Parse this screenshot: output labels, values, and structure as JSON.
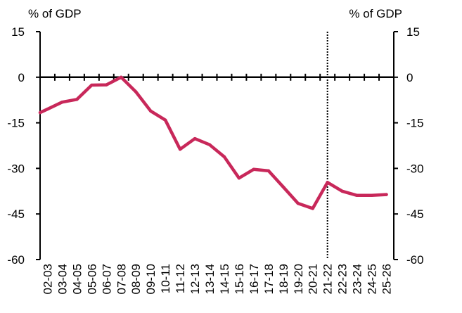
{
  "chart_data": {
    "type": "line",
    "title": "",
    "ylabel_left": "% of GDP",
    "ylabel_right": "% of GDP",
    "xlabel": "",
    "ylim": [
      -60,
      15
    ],
    "yticks": [
      15,
      0,
      -15,
      -30,
      -45,
      -60
    ],
    "grid": false,
    "legend": "none",
    "categories": [
      "02-03",
      "03-04",
      "04-05",
      "05-06",
      "06-07",
      "07-08",
      "08-09",
      "09-10",
      "10-11",
      "11-12",
      "12-13",
      "13-14",
      "14-15",
      "15-16",
      "16-17",
      "17-18",
      "18-19",
      "19-20",
      "20-21",
      "21-22",
      "22-23",
      "23-24",
      "24-25",
      "25-26"
    ],
    "series": [
      {
        "color": "#c8285a",
        "values": [
          -10.5,
          -8.2,
          -7.3,
          -2.6,
          -2.5,
          0,
          -4.8,
          -11.1,
          -14.1,
          -23.7,
          -20.2,
          -22.2,
          -26.2,
          -33.2,
          -30.3,
          -30.8,
          -36.1,
          -41.5,
          -43.2,
          -34.6,
          -37.5,
          -38.9,
          -38.9,
          -38.6
        ]
      }
    ],
    "divider_after_category": "21-22",
    "colors": {
      "series": "#c8285a",
      "axis": "#000000"
    }
  }
}
